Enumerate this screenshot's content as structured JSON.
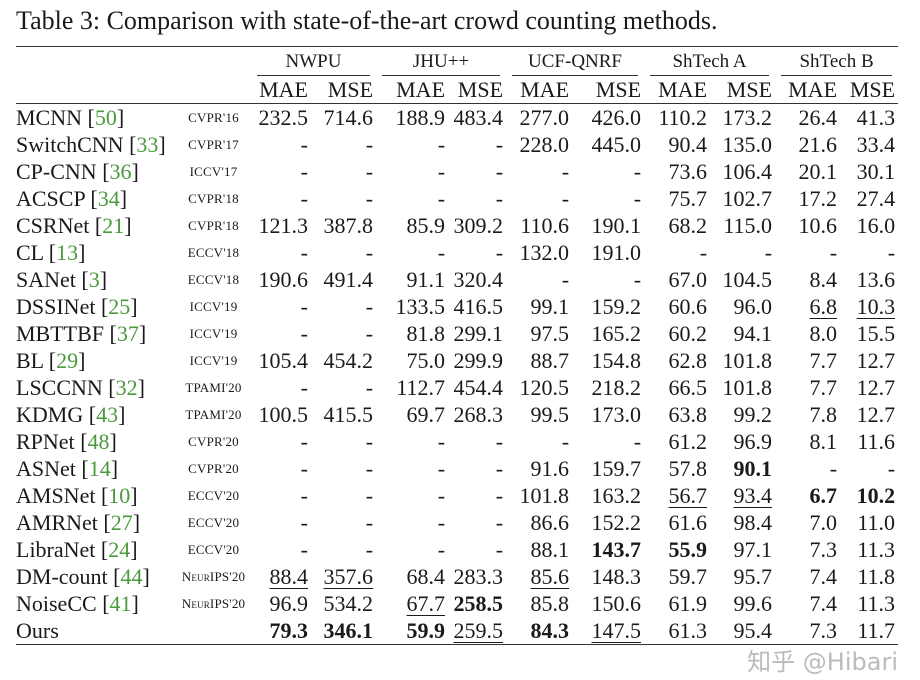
{
  "caption": "Table 3: Comparison with state-of-the-art crowd counting methods.",
  "colors": {
    "reference": "#4a9a3c",
    "text": "#1a1a1a"
  },
  "groups": [
    "NWPU",
    "JHU++",
    "UCF-QNRF",
    "ShTech A",
    "ShTech B"
  ],
  "metrics": [
    "MAE",
    "MSE",
    "MAE",
    "MSE",
    "MAE",
    "MSE",
    "MAE",
    "MSE",
    "MAE",
    "MSE"
  ],
  "style_legend": {
    "b": "bold",
    "u": "underline"
  },
  "rows": [
    {
      "method": "MCNN",
      "ref": "50",
      "venue": "CVPR'16",
      "cells": [
        [
          "232.5",
          ""
        ],
        [
          "714.6",
          ""
        ],
        [
          "188.9",
          ""
        ],
        [
          "483.4",
          ""
        ],
        [
          "277.0",
          ""
        ],
        [
          "426.0",
          ""
        ],
        [
          "110.2",
          ""
        ],
        [
          "173.2",
          ""
        ],
        [
          "26.4",
          ""
        ],
        [
          "41.3",
          ""
        ]
      ]
    },
    {
      "method": "SwitchCNN",
      "ref": "33",
      "venue": "CVPR'17",
      "cells": [
        [
          "-",
          ""
        ],
        [
          "-",
          ""
        ],
        [
          "-",
          ""
        ],
        [
          "-",
          ""
        ],
        [
          "228.0",
          ""
        ],
        [
          "445.0",
          ""
        ],
        [
          "90.4",
          ""
        ],
        [
          "135.0",
          ""
        ],
        [
          "21.6",
          ""
        ],
        [
          "33.4",
          ""
        ]
      ]
    },
    {
      "method": "CP-CNN",
      "ref": "36",
      "venue": "ICCV'17",
      "cells": [
        [
          "-",
          ""
        ],
        [
          "-",
          ""
        ],
        [
          "-",
          ""
        ],
        [
          "-",
          ""
        ],
        [
          "-",
          ""
        ],
        [
          "-",
          ""
        ],
        [
          "73.6",
          ""
        ],
        [
          "106.4",
          ""
        ],
        [
          "20.1",
          ""
        ],
        [
          "30.1",
          ""
        ]
      ]
    },
    {
      "method": "ACSCP",
      "ref": "34",
      "venue": "CVPR'18",
      "cells": [
        [
          "-",
          ""
        ],
        [
          "-",
          ""
        ],
        [
          "-",
          ""
        ],
        [
          "-",
          ""
        ],
        [
          "-",
          ""
        ],
        [
          "-",
          ""
        ],
        [
          "75.7",
          ""
        ],
        [
          "102.7",
          ""
        ],
        [
          "17.2",
          ""
        ],
        [
          "27.4",
          ""
        ]
      ]
    },
    {
      "method": "CSRNet",
      "ref": "21",
      "venue": "CVPR'18",
      "cells": [
        [
          "121.3",
          ""
        ],
        [
          "387.8",
          ""
        ],
        [
          "85.9",
          ""
        ],
        [
          "309.2",
          ""
        ],
        [
          "110.6",
          ""
        ],
        [
          "190.1",
          ""
        ],
        [
          "68.2",
          ""
        ],
        [
          "115.0",
          ""
        ],
        [
          "10.6",
          ""
        ],
        [
          "16.0",
          ""
        ]
      ]
    },
    {
      "method": "CL",
      "ref": "13",
      "venue": "ECCV'18",
      "cells": [
        [
          "-",
          ""
        ],
        [
          "-",
          ""
        ],
        [
          "-",
          ""
        ],
        [
          "-",
          ""
        ],
        [
          "132.0",
          ""
        ],
        [
          "191.0",
          ""
        ],
        [
          "-",
          ""
        ],
        [
          "-",
          ""
        ],
        [
          "-",
          ""
        ],
        [
          "-",
          ""
        ]
      ]
    },
    {
      "method": "SANet",
      "ref": "3",
      "venue": "ECCV'18",
      "cells": [
        [
          "190.6",
          ""
        ],
        [
          "491.4",
          ""
        ],
        [
          "91.1",
          ""
        ],
        [
          "320.4",
          ""
        ],
        [
          "-",
          ""
        ],
        [
          "-",
          ""
        ],
        [
          "67.0",
          ""
        ],
        [
          "104.5",
          ""
        ],
        [
          "8.4",
          ""
        ],
        [
          "13.6",
          ""
        ]
      ]
    },
    {
      "method": "DSSINet",
      "ref": "25",
      "venue": "ICCV'19",
      "cells": [
        [
          "-",
          ""
        ],
        [
          "-",
          ""
        ],
        [
          "133.5",
          ""
        ],
        [
          "416.5",
          ""
        ],
        [
          "99.1",
          ""
        ],
        [
          "159.2",
          ""
        ],
        [
          "60.6",
          ""
        ],
        [
          "96.0",
          ""
        ],
        [
          "6.8",
          "u"
        ],
        [
          "10.3",
          "u"
        ]
      ]
    },
    {
      "method": "MBTTBF",
      "ref": "37",
      "venue": "ICCV'19",
      "cells": [
        [
          "-",
          ""
        ],
        [
          "-",
          ""
        ],
        [
          "81.8",
          ""
        ],
        [
          "299.1",
          ""
        ],
        [
          "97.5",
          ""
        ],
        [
          "165.2",
          ""
        ],
        [
          "60.2",
          ""
        ],
        [
          "94.1",
          ""
        ],
        [
          "8.0",
          ""
        ],
        [
          "15.5",
          ""
        ]
      ]
    },
    {
      "method": "BL",
      "ref": "29",
      "venue": "ICCV'19",
      "cells": [
        [
          "105.4",
          ""
        ],
        [
          "454.2",
          ""
        ],
        [
          "75.0",
          ""
        ],
        [
          "299.9",
          ""
        ],
        [
          "88.7",
          ""
        ],
        [
          "154.8",
          ""
        ],
        [
          "62.8",
          ""
        ],
        [
          "101.8",
          ""
        ],
        [
          "7.7",
          ""
        ],
        [
          "12.7",
          ""
        ]
      ]
    },
    {
      "method": "LSCCNN",
      "ref": "32",
      "venue": "TPAMI'20",
      "cells": [
        [
          "-",
          ""
        ],
        [
          "-",
          ""
        ],
        [
          "112.7",
          ""
        ],
        [
          "454.4",
          ""
        ],
        [
          "120.5",
          ""
        ],
        [
          "218.2",
          ""
        ],
        [
          "66.5",
          ""
        ],
        [
          "101.8",
          ""
        ],
        [
          "7.7",
          ""
        ],
        [
          "12.7",
          ""
        ]
      ]
    },
    {
      "method": "KDMG",
      "ref": "43",
      "venue": "TPAMI'20",
      "cells": [
        [
          "100.5",
          ""
        ],
        [
          "415.5",
          ""
        ],
        [
          "69.7",
          ""
        ],
        [
          "268.3",
          ""
        ],
        [
          "99.5",
          ""
        ],
        [
          "173.0",
          ""
        ],
        [
          "63.8",
          ""
        ],
        [
          "99.2",
          ""
        ],
        [
          "7.8",
          ""
        ],
        [
          "12.7",
          ""
        ]
      ]
    },
    {
      "method": "RPNet",
      "ref": "48",
      "venue": "CVPR'20",
      "cells": [
        [
          "-",
          ""
        ],
        [
          "-",
          ""
        ],
        [
          "-",
          ""
        ],
        [
          "-",
          ""
        ],
        [
          "-",
          ""
        ],
        [
          "-",
          ""
        ],
        [
          "61.2",
          ""
        ],
        [
          "96.9",
          ""
        ],
        [
          "8.1",
          ""
        ],
        [
          "11.6",
          ""
        ]
      ]
    },
    {
      "method": "ASNet",
      "ref": "14",
      "venue": "CVPR'20",
      "cells": [
        [
          "-",
          ""
        ],
        [
          "-",
          ""
        ],
        [
          "-",
          ""
        ],
        [
          "-",
          ""
        ],
        [
          "91.6",
          ""
        ],
        [
          "159.7",
          ""
        ],
        [
          "57.8",
          ""
        ],
        [
          "90.1",
          "b"
        ],
        [
          "-",
          ""
        ],
        [
          "-",
          ""
        ]
      ]
    },
    {
      "method": "AMSNet",
      "ref": "10",
      "venue": "ECCV'20",
      "cells": [
        [
          "-",
          ""
        ],
        [
          "-",
          ""
        ],
        [
          "-",
          ""
        ],
        [
          "-",
          ""
        ],
        [
          "101.8",
          ""
        ],
        [
          "163.2",
          ""
        ],
        [
          "56.7",
          "u"
        ],
        [
          "93.4",
          "u"
        ],
        [
          "6.7",
          "b"
        ],
        [
          "10.2",
          "b"
        ]
      ]
    },
    {
      "method": "AMRNet",
      "ref": "27",
      "venue": "ECCV'20",
      "cells": [
        [
          "-",
          ""
        ],
        [
          "-",
          ""
        ],
        [
          "-",
          ""
        ],
        [
          "-",
          ""
        ],
        [
          "86.6",
          ""
        ],
        [
          "152.2",
          ""
        ],
        [
          "61.6",
          ""
        ],
        [
          "98.4",
          ""
        ],
        [
          "7.0",
          ""
        ],
        [
          "11.0",
          ""
        ]
      ]
    },
    {
      "method": "LibraNet",
      "ref": "24",
      "venue": "ECCV'20",
      "cells": [
        [
          "-",
          ""
        ],
        [
          "-",
          ""
        ],
        [
          "-",
          ""
        ],
        [
          "-",
          ""
        ],
        [
          "88.1",
          ""
        ],
        [
          "143.7",
          "b"
        ],
        [
          "55.9",
          "b"
        ],
        [
          "97.1",
          ""
        ],
        [
          "7.3",
          ""
        ],
        [
          "11.3",
          ""
        ]
      ]
    },
    {
      "method": "DM-count",
      "ref": "44",
      "venue": "NeurIPS'20",
      "cells": [
        [
          "88.4",
          "u"
        ],
        [
          "357.6",
          "u"
        ],
        [
          "68.4",
          ""
        ],
        [
          "283.3",
          ""
        ],
        [
          "85.6",
          "u"
        ],
        [
          "148.3",
          ""
        ],
        [
          "59.7",
          ""
        ],
        [
          "95.7",
          ""
        ],
        [
          "7.4",
          ""
        ],
        [
          "11.8",
          ""
        ]
      ]
    },
    {
      "method": "NoiseCC",
      "ref": "41",
      "venue": "NeurIPS'20",
      "cells": [
        [
          "96.9",
          ""
        ],
        [
          "534.2",
          ""
        ],
        [
          "67.7",
          "u"
        ],
        [
          "258.5",
          "b"
        ],
        [
          "85.8",
          ""
        ],
        [
          "150.6",
          ""
        ],
        [
          "61.9",
          ""
        ],
        [
          "99.6",
          ""
        ],
        [
          "7.4",
          ""
        ],
        [
          "11.3",
          ""
        ]
      ]
    },
    {
      "method": "Ours",
      "ref": "",
      "venue": "",
      "cells": [
        [
          "79.3",
          "b"
        ],
        [
          "346.1",
          "b"
        ],
        [
          "59.9",
          "b"
        ],
        [
          "259.5",
          "u"
        ],
        [
          "84.3",
          "b"
        ],
        [
          "147.5",
          "u"
        ],
        [
          "61.3",
          ""
        ],
        [
          "95.4",
          ""
        ],
        [
          "7.3",
          ""
        ],
        [
          "11.7",
          ""
        ]
      ]
    }
  ],
  "watermark": "知乎 @Hibari"
}
